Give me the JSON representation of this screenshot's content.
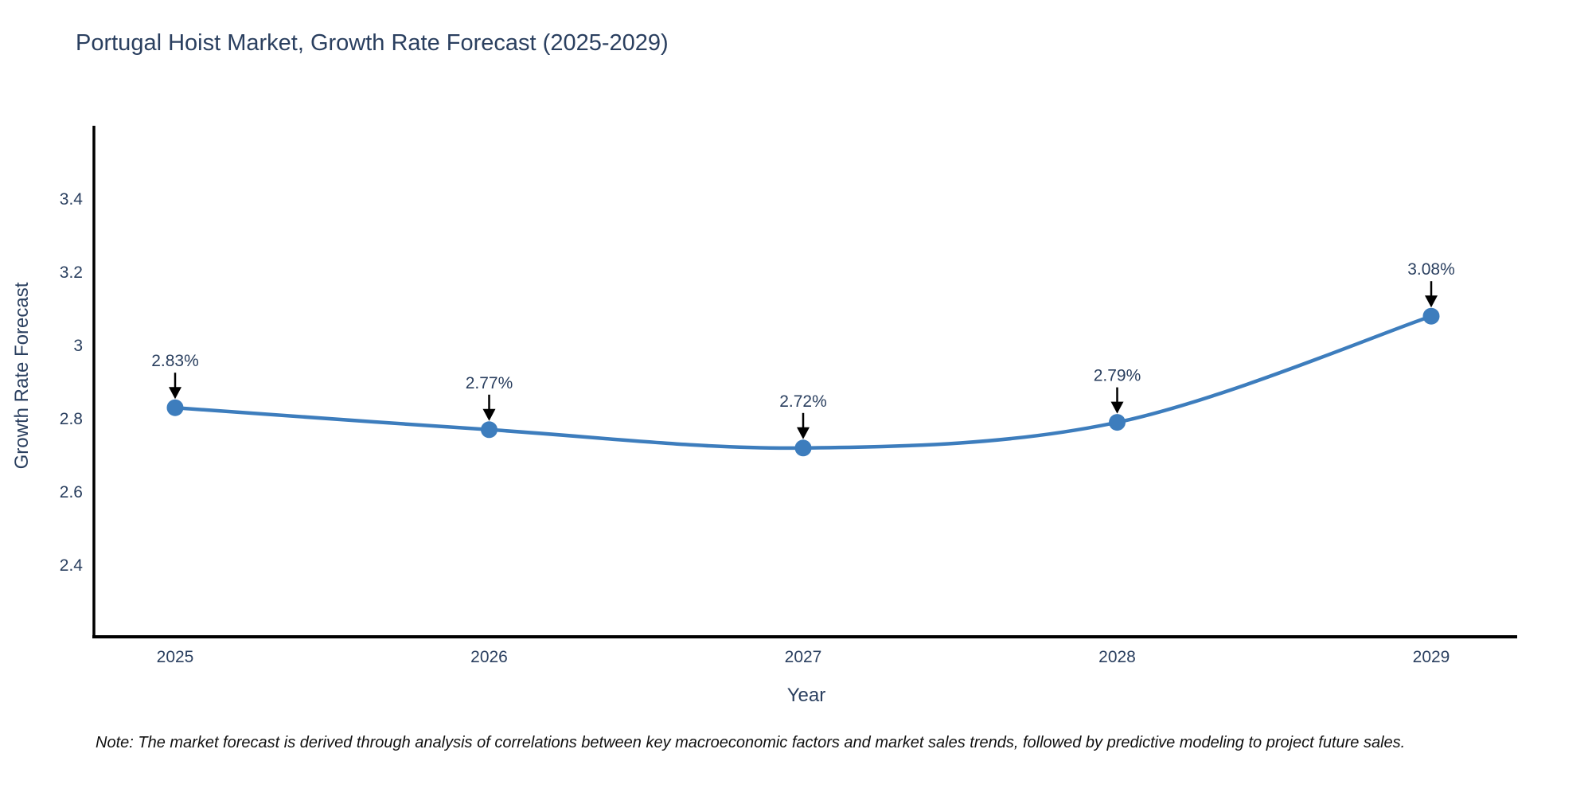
{
  "chart": {
    "title": "Portugal Hoist Market, Growth Rate Forecast (2025-2029)",
    "note": "Note: The market forecast is derived through analysis of correlations between key macroeconomic factors and market sales trends, followed by predictive modeling to project future sales.",
    "colors": {
      "line": "#3d7dbd",
      "marker": "#3d7dbd",
      "axis_spine": "#000000",
      "text": "#2a3f5f",
      "arrow": "#000000",
      "background": "#ffffff"
    }
  },
  "chart_data": {
    "type": "line",
    "title": "Portugal Hoist Market, Growth Rate Forecast (2025-2029)",
    "xlabel": "Year",
    "ylabel": "Growth Rate Forecast",
    "x": [
      2025,
      2026,
      2027,
      2028,
      2029
    ],
    "series": [
      {
        "name": "Growth Rate Forecast",
        "values": [
          2.83,
          2.77,
          2.72,
          2.79,
          3.08
        ]
      }
    ],
    "point_labels": [
      "2.83%",
      "2.77%",
      "2.72%",
      "2.79%",
      "3.08%"
    ],
    "xticks": [
      "2025",
      "2026",
      "2027",
      "2028",
      "2029"
    ],
    "yticks": [
      2.4,
      2.6,
      2.8,
      3,
      3.2,
      3.4
    ],
    "ylim": [
      2.2,
      3.6
    ],
    "xlim": [
      2024.74,
      2029.28
    ],
    "line_shape": "spline",
    "grid": false,
    "legend": "none",
    "annotations_have_arrows": true
  }
}
